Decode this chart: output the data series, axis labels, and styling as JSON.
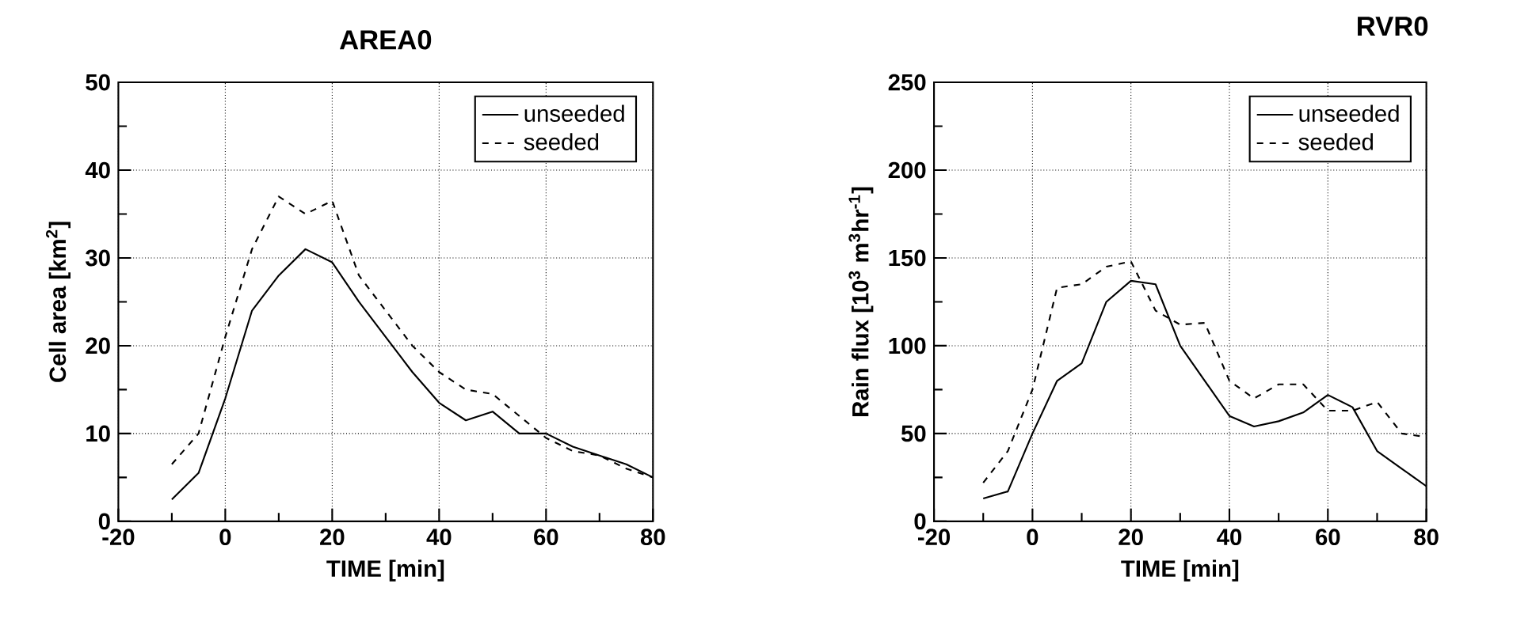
{
  "chart_data": [
    {
      "type": "line",
      "title": "AREA0",
      "xlabel": "TIME  [min]",
      "ylabel": "Cell  area  [km$^{2}$]",
      "x": [
        -10,
        -5,
        0,
        5,
        10,
        15,
        20,
        25,
        30,
        35,
        40,
        45,
        50,
        55,
        60,
        65,
        70,
        75,
        80
      ],
      "series": [
        {
          "name": "unseeded",
          "color": "#000000",
          "line_style": "solid",
          "values": [
            2.5,
            5.5,
            14,
            24,
            28,
            31,
            29.5,
            25,
            21,
            17,
            13.5,
            11.5,
            12.5,
            10,
            10,
            8.5,
            7.5,
            6.5,
            5
          ]
        },
        {
          "name": "seeded",
          "color": "#000000",
          "line_style": "dashed",
          "values": [
            6.5,
            10,
            21,
            31,
            37,
            35,
            36.5,
            28,
            24,
            20,
            17,
            15,
            14.5,
            12,
            9.5,
            8,
            7.5,
            6,
            5
          ]
        }
      ],
      "xlim": [
        -20,
        80
      ],
      "xticks": [
        -20,
        0,
        20,
        40,
        60,
        80
      ],
      "ylim": [
        0,
        50
      ],
      "yticks": [
        0,
        10,
        20,
        30,
        40,
        50
      ],
      "grid": true,
      "legend": "top right",
      "marker": "none"
    },
    {
      "type": "line",
      "title": "RVR0",
      "xlabel": "TIME  [min]",
      "ylabel": "Rain  flux  [10$^{3}$ m$^{3}$hr$^{-1}$]",
      "x": [
        -10,
        -5,
        0,
        5,
        10,
        15,
        20,
        25,
        30,
        35,
        40,
        45,
        50,
        55,
        60,
        65,
        70,
        75,
        80
      ],
      "series": [
        {
          "name": "unseeded",
          "color": "#000000",
          "line_style": "solid",
          "values": [
            13,
            17,
            50,
            80,
            90,
            125,
            137,
            135,
            100,
            80,
            60,
            54,
            57,
            62,
            72,
            65,
            40,
            30,
            20
          ]
        },
        {
          "name": "seeded",
          "color": "#000000",
          "line_style": "dashed",
          "values": [
            22,
            40,
            75,
            133,
            135,
            145,
            148,
            120,
            112,
            113,
            80,
            70,
            78,
            78,
            63,
            63,
            68,
            50,
            48
          ]
        }
      ],
      "xlim": [
        -20,
        80
      ],
      "xticks": [
        -20,
        0,
        20,
        40,
        60,
        80
      ],
      "ylim": [
        0,
        250
      ],
      "yticks": [
        0,
        50,
        100,
        150,
        200,
        250
      ],
      "grid": true,
      "legend": "top right",
      "marker": "none"
    }
  ]
}
